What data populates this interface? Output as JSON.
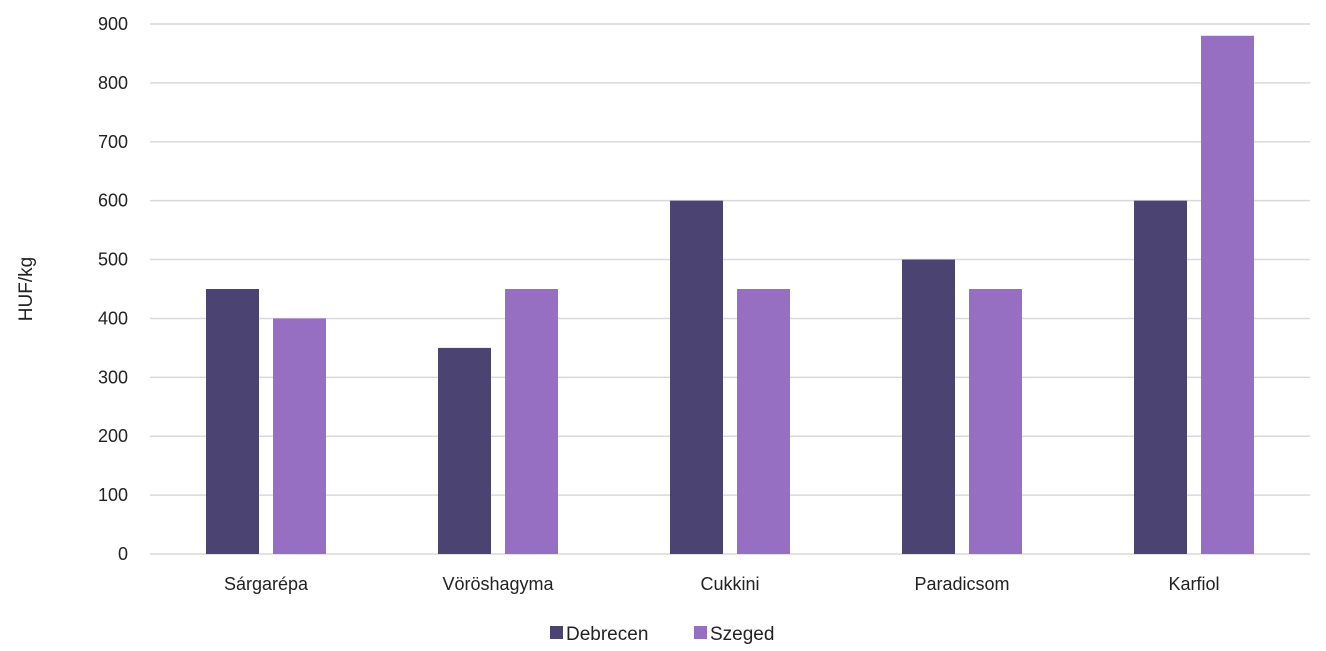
{
  "chart_data": {
    "type": "bar",
    "title": "",
    "xlabel": "",
    "ylabel": "HUF/kg",
    "ylim": [
      0,
      900
    ],
    "yticks": [
      0,
      100,
      200,
      300,
      400,
      500,
      600,
      700,
      800,
      900
    ],
    "grid": true,
    "legend_position": "bottom",
    "categories": [
      "Sárgarépa",
      "Vöröshagyma",
      "Cukkini",
      "Paradicsom",
      "Karfiol"
    ],
    "series": [
      {
        "name": "Debrecen",
        "color": "#4b4372",
        "values": [
          450,
          350,
          600,
          500,
          600
        ]
      },
      {
        "name": "Szeged",
        "color": "#966ec2",
        "values": [
          400,
          450,
          450,
          450,
          880
        ]
      }
    ]
  }
}
